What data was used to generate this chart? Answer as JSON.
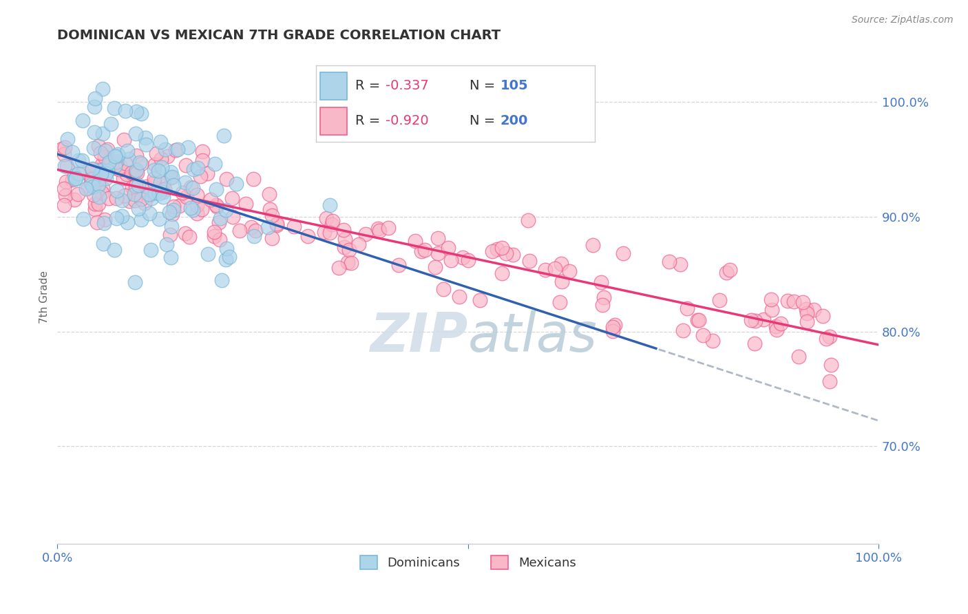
{
  "title": "DOMINICAN VS MEXICAN 7TH GRADE CORRELATION CHART",
  "source": "Source: ZipAtlas.com",
  "ylabel": "7th Grade",
  "xmin": 0.0,
  "xmax": 1.0,
  "ymin": 0.615,
  "ymax": 1.045,
  "yticks": [
    0.7,
    0.8,
    0.9,
    1.0
  ],
  "ytick_labels": [
    "70.0%",
    "80.0%",
    "90.0%",
    "100.0%"
  ],
  "dominican_R": -0.337,
  "dominican_N": 105,
  "mexican_R": -0.92,
  "mexican_N": 200,
  "dominican_edge_color": "#7ab8d9",
  "dominican_face_color": "#aed4ea",
  "mexican_edge_color": "#f06090",
  "mexican_face_color": "#f9b8c8",
  "regression_blue_color": "#3060b0",
  "regression_pink_color": "#e83878",
  "dashed_color": "#b0b8c8",
  "watermark_zip_color": "#c8d8e8",
  "watermark_atlas_color": "#b0c8d8",
  "background_color": "#ffffff",
  "grid_color": "#cccccc",
  "axis_label_color": "#4477cc",
  "legend_r_color": "#e83878",
  "legend_n_color": "#4477cc",
  "legend_text_color": "#333333"
}
